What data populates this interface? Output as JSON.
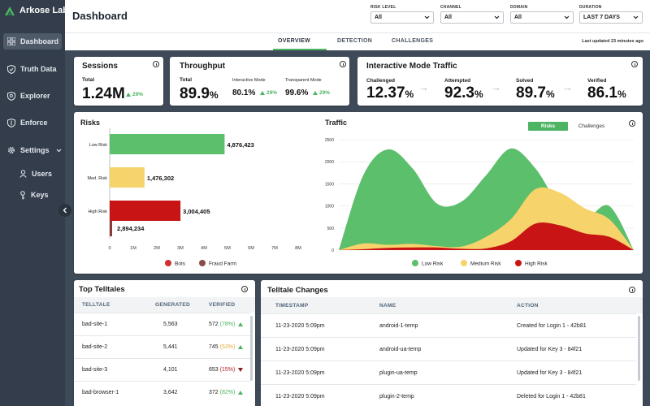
{
  "app": {
    "brand": "Arkose Labs",
    "logo_icon": "arkose-logo-icon"
  },
  "sidebar": {
    "items": [
      {
        "label": "Dashboard",
        "icon": "dashboard-icon",
        "active": true
      },
      {
        "label": "Truth Data",
        "icon": "shield-check-icon"
      },
      {
        "label": "Explorer",
        "icon": "shield-search-icon"
      },
      {
        "label": "Enforce",
        "icon": "shield-icon"
      },
      {
        "label": "Settings",
        "icon": "gear-icon"
      },
      {
        "label": "Users",
        "icon": "user-icon"
      },
      {
        "label": "Keys",
        "icon": "key-icon"
      }
    ]
  },
  "header": {
    "title": "Dashboard",
    "filters": [
      {
        "label": "RISK LEVEL",
        "value": "All"
      },
      {
        "label": "CHANNEL",
        "value": "All"
      },
      {
        "label": "DOMAIN",
        "value": "All"
      },
      {
        "label": "DURATION",
        "value": "LAST 7 DAYS"
      }
    ]
  },
  "tabs": [
    {
      "label": "OVERVIEW",
      "active": true
    },
    {
      "label": "DETECTION"
    },
    {
      "label": "CHALLENGES"
    }
  ],
  "last_updated": "Last updated 23 minutes ago",
  "sessions": {
    "title": "Sessions",
    "total_label": "Total",
    "total": "1.24M",
    "delta": "29%"
  },
  "throughput": {
    "title": "Throughput",
    "total_label": "Total",
    "total": "89.9",
    "total_unit": "%",
    "interactive_label": "Interactive Mode",
    "interactive": "80.1%",
    "interactive_delta": "29%",
    "transparent_label": "Transparent Mode",
    "transparent": "99.6%",
    "transparent_delta": "29%"
  },
  "imt": {
    "title": "Interactive Mode Traffic",
    "metrics": [
      {
        "label": "Challenged",
        "value": "12.37",
        "unit": "%"
      },
      {
        "label": "Attempted",
        "value": "92.3",
        "unit": "%"
      },
      {
        "label": "Solved",
        "value": "89.7",
        "unit": "%"
      },
      {
        "label": "Verified",
        "value": "86.1",
        "unit": "%"
      }
    ]
  },
  "risks_title": "Risks",
  "traffic_title": "Traffic",
  "traffic_toggle": {
    "active": "Risks",
    "inactive": "Challenges"
  },
  "chart_data": [
    {
      "type": "bar",
      "title": "Risks",
      "orientation": "horizontal",
      "categories": [
        "Low Risk",
        "Med. Risk",
        "High Risk"
      ],
      "series": [
        {
          "name": "Bots",
          "values": [
            4876423,
            1476302,
            3004405
          ],
          "labels": [
            "4,876,423",
            "1,476,302",
            "3,004,405"
          ]
        },
        {
          "name": "Fraud Farm",
          "values": [
            0,
            0,
            2894234
          ],
          "labels": [
            "",
            "",
            "2,894,234"
          ]
        }
      ],
      "xticks": [
        "0",
        "1M",
        "2M",
        "3M",
        "4M",
        "5M",
        "6M",
        "7M",
        "8M"
      ],
      "xlim": [
        0,
        8000000
      ],
      "colors": {
        "Low Risk": "#5cbf6b",
        "Med. Risk": "#f7d36b",
        "High Risk": "#c81414",
        "Fraud Farm": "#8b3a3a"
      },
      "legend": [
        "Bots",
        "Fraud Farm"
      ],
      "legend_colors": [
        "#d2302f",
        "#8b4a4a"
      ]
    },
    {
      "type": "area",
      "title": "Traffic",
      "x": [
        0,
        1,
        2,
        3,
        4,
        5,
        6,
        7,
        8,
        9,
        10,
        11,
        12
      ],
      "series": [
        {
          "name": "Low Risk",
          "color": "#5cbf6b",
          "values": [
            0,
            1700,
            2280,
            1850,
            1050,
            1100,
            1700,
            2300,
            1850,
            1000,
            700,
            1000,
            0
          ]
        },
        {
          "name": "Medium Risk",
          "color": "#f7d36b",
          "values": [
            0,
            150,
            120,
            140,
            90,
            80,
            300,
            700,
            1380,
            1300,
            950,
            700,
            0
          ]
        },
        {
          "name": "High Risk",
          "color": "#c81414",
          "values": [
            0,
            20,
            50,
            60,
            60,
            30,
            40,
            200,
            600,
            560,
            380,
            300,
            0
          ]
        }
      ],
      "yticks": [
        "0",
        "500",
        "1000",
        "1500",
        "2000",
        "2500"
      ],
      "ylim": [
        0,
        2500
      ],
      "legend": "bottom"
    }
  ],
  "telltales": {
    "title": "Top Telltales",
    "columns": [
      "TELLTALE",
      "GENERATED",
      "VERIFIED"
    ],
    "rows": [
      {
        "name": "bad-site-1",
        "generated": "5,563",
        "verified": "572",
        "pct": "(78%)",
        "pct_color": "#4db462",
        "trend": "up"
      },
      {
        "name": "bad-site-2",
        "generated": "5,441",
        "verified": "745",
        "pct": "(53%)",
        "pct_color": "#e8a83a",
        "trend": "up"
      },
      {
        "name": "bad-site-3",
        "generated": "4,101",
        "verified": "653",
        "pct": "(15%)",
        "pct_color": "#b01c1c",
        "trend": "down"
      },
      {
        "name": "bad-browser-1",
        "generated": "3,642",
        "verified": "372",
        "pct": "(82%)",
        "pct_color": "#4db462",
        "trend": "up"
      }
    ]
  },
  "changes": {
    "title": "Telltale Changes",
    "columns": [
      "TIMESTAMP",
      "NAME",
      "ACTION"
    ],
    "rows": [
      {
        "timestamp": "11-23-2020 5:09pm",
        "name": "android-1-temp",
        "action": "Created for Login 1 - 42b81"
      },
      {
        "timestamp": "11-23-2020 5:09pm",
        "name": "android-ua-temp",
        "action": "Updated for Key 3 - 84f21"
      },
      {
        "timestamp": "11-23-2020 5:09pm",
        "name": "plugin-ua-temp",
        "action": "Updated for Key 3 - 84f21"
      },
      {
        "timestamp": "11-23-2020 5:09pm",
        "name": "plugin-2-temp",
        "action": "Deleted for Login 1 - 42b81"
      }
    ]
  },
  "colors": {
    "accent": "#4db462",
    "sidebar": "#333d4b",
    "background": "#3f4a59"
  }
}
